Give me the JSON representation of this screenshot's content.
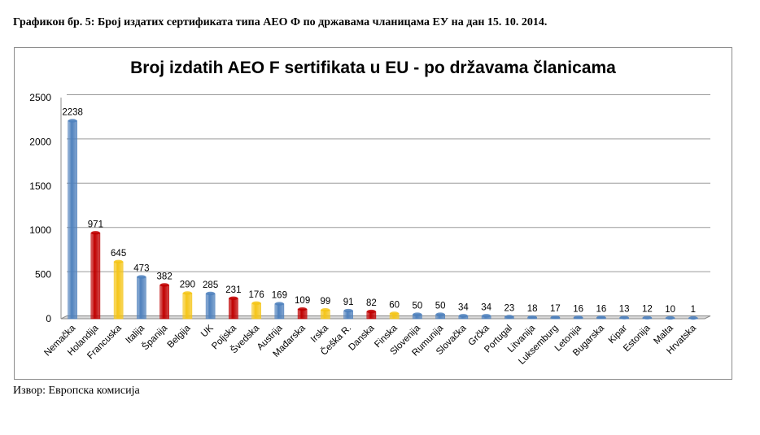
{
  "caption": "Графикон бр. 5: Број издатих сертификата типа АЕО Ф по државама чланицама ЕУ на дан 15. 10. 2014.",
  "source": "Извор: Европска комисија",
  "colors": {
    "blue": "#4F81BD",
    "red": "#C00000",
    "yellow": "#F5C518"
  },
  "chart_data": {
    "type": "bar",
    "title": "Broj izdatih AEO F sertifikata u EU - po državama članicama",
    "xlabel": "",
    "ylabel": "",
    "ylim": [
      0,
      2500
    ],
    "yticks": [
      0,
      500,
      1000,
      1500,
      2000,
      2500
    ],
    "grid": true,
    "legend": "none",
    "categories": [
      "Nemačka",
      "Holandija",
      "Francuska",
      "Italija",
      "Španija",
      "Belgija",
      "UK",
      "Poljska",
      "Švedska",
      "Austrija",
      "Mađarska",
      "Irska",
      "Češka R.",
      "Danska",
      "Finska",
      "Slovenija",
      "Rumunija",
      "Slovačka",
      "Grčka",
      "Portugal",
      "Litvanija",
      "Luksemburg",
      "Letonija",
      "Bugarska",
      "Kipar",
      "Estonija",
      "Malta",
      "Hrvatska"
    ],
    "values": [
      2238,
      971,
      645,
      473,
      382,
      290,
      285,
      231,
      176,
      169,
      109,
      99,
      91,
      82,
      60,
      50,
      50,
      34,
      34,
      23,
      18,
      17,
      16,
      16,
      13,
      12,
      10,
      1
    ],
    "bar_colors": [
      "blue",
      "red",
      "yellow",
      "blue",
      "red",
      "yellow",
      "blue",
      "red",
      "yellow",
      "blue",
      "red",
      "yellow",
      "blue",
      "red",
      "yellow",
      "blue",
      "blue",
      "blue",
      "blue",
      "blue",
      "blue",
      "blue",
      "blue",
      "blue",
      "blue",
      "blue",
      "blue",
      "blue"
    ]
  }
}
